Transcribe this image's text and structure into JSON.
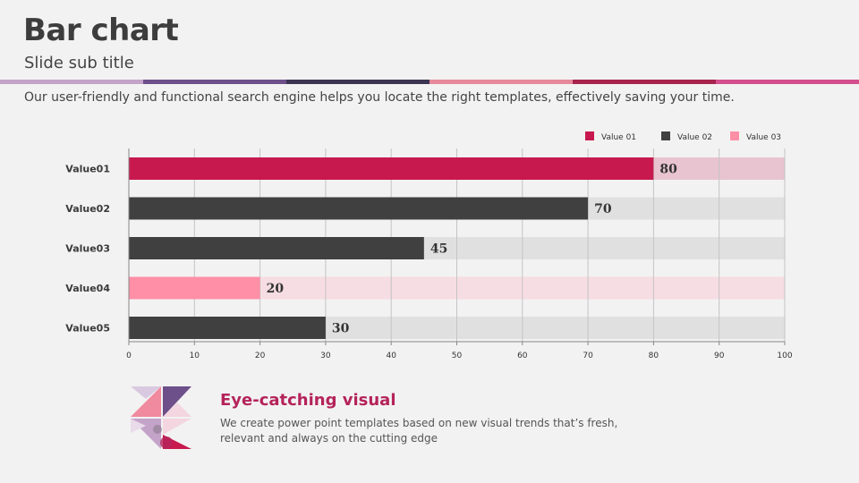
{
  "slide": {
    "title": "Bar chart",
    "subtitle": "Slide sub title",
    "description": "Our user-friendly and functional search engine helps you locate the right templates, effectively saving your time.",
    "stripe_colors": [
      "#c4a3c9",
      "#6d4f8a",
      "#3b3552",
      "#e68a9b",
      "#a8244f",
      "#d44f8e"
    ]
  },
  "footer": {
    "heading": "Eye-catching visual",
    "text": "We create power point templates based on new visual trends that’s fresh, relevant and always on the cutting edge"
  },
  "chart_data": {
    "type": "bar",
    "orientation": "horizontal",
    "categories": [
      "Value01",
      "Value02",
      "Value03",
      "Value04",
      "Value05"
    ],
    "values": [
      80,
      70,
      45,
      20,
      30
    ],
    "bar_colors": [
      "#c8194f",
      "#404040",
      "#404040",
      "#ff8fa6",
      "#404040"
    ],
    "track_colors": [
      "#e8c3d0",
      "#e0e0e0",
      "#e0e0e0",
      "#f6dce3",
      "#e0e0e0"
    ],
    "xlim": [
      0,
      100
    ],
    "xticks": [
      0,
      10,
      20,
      30,
      40,
      50,
      60,
      70,
      80,
      90,
      100
    ],
    "grid": true,
    "legend": [
      {
        "name": "Value 01",
        "color": "#c8194f"
      },
      {
        "name": "Value 02",
        "color": "#404040"
      },
      {
        "name": "Value 03",
        "color": "#ff8fa6"
      }
    ],
    "legend_position": "top-right"
  }
}
